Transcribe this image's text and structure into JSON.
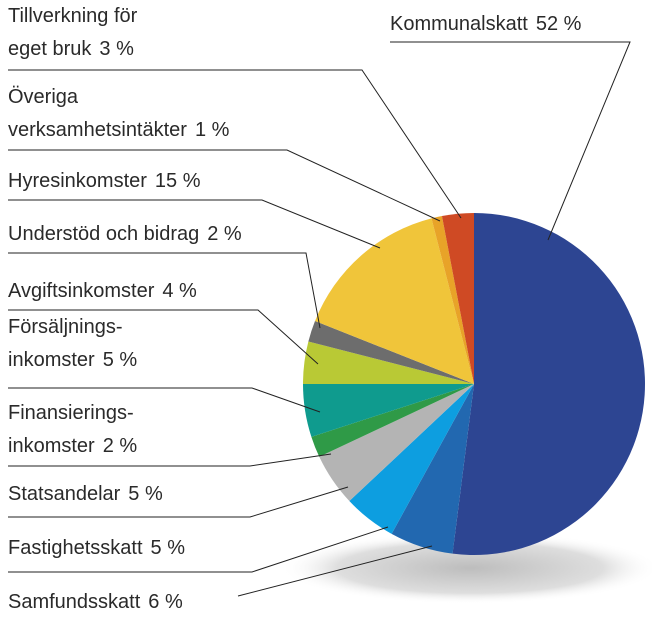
{
  "chart_data": {
    "type": "pie",
    "categories": [
      [
        "Kommunalskatt"
      ],
      [
        "Samfundsskatt"
      ],
      [
        "Fastighetsskatt"
      ],
      [
        "Statsandelar"
      ],
      [
        "Finansierings-",
        "inkomster"
      ],
      [
        "Försäljnings-",
        "inkomster"
      ],
      [
        "Avgiftsinkomster"
      ],
      [
        "Understöd och bidrag"
      ],
      [
        "Hyresinkomster"
      ],
      [
        "Överiga",
        "verksamhetsintäkter"
      ],
      [
        "Tillverkning för",
        "eget bruk"
      ]
    ],
    "values": [
      52,
      6,
      5,
      5,
      2,
      5,
      4,
      2,
      15,
      1,
      3
    ],
    "value_labels": [
      "52 %",
      "6 %",
      "5 %",
      "5 %",
      "2 %",
      "5 %",
      "4 %",
      "2 %",
      "15 %",
      "1 %",
      "3 %"
    ],
    "colors": [
      "#2d4592",
      "#2268b0",
      "#0d9ee0",
      "#b4b4b4",
      "#2f9a47",
      "#0f9b8e",
      "#b9c935",
      "#6d6d6d",
      "#f0c53a",
      "#e8a328",
      "#cf4a24"
    ]
  }
}
